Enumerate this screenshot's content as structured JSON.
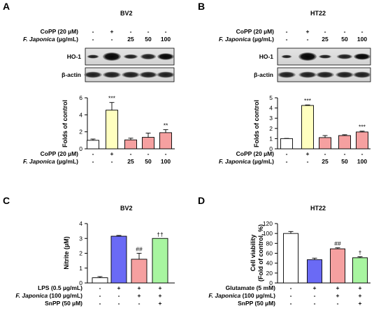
{
  "panels": [
    {
      "letter": "A",
      "cell": "BV2",
      "blot": {
        "header_rows": [
          {
            "label": "CoPP (20 µM)",
            "marks": [
              "-",
              "+",
              "-",
              "-",
              "-"
            ]
          },
          {
            "label": "F. Japonica (µg/mL)",
            "marks": [
              "-",
              "-",
              "25",
              "50",
              "100"
            ]
          }
        ],
        "bands": [
          "HO-1",
          "β-actin"
        ]
      }
    },
    {
      "letter": "B",
      "cell": "HT22",
      "blot": {
        "header_rows": [
          {
            "label": "CoPP (20 µM)",
            "marks": [
              "-",
              "+",
              "-",
              "-",
              "-"
            ]
          },
          {
            "label": "F. Japonica (µg/mL)",
            "marks": [
              "-",
              "-",
              "25",
              "50",
              "100"
            ]
          }
        ],
        "bands": [
          "HO-1",
          "β-actin"
        ]
      }
    },
    {
      "letter": "C",
      "cell": "BV2"
    },
    {
      "letter": "D",
      "cell": "HT22"
    }
  ],
  "chart_data": [
    {
      "type": "bar",
      "panel": "A",
      "ylabel": "Folds of control",
      "ylim": [
        0,
        6
      ],
      "yticks": [
        0,
        2,
        4,
        6
      ],
      "values": [
        1.0,
        4.55,
        1.05,
        1.35,
        1.9
      ],
      "errors": [
        0.15,
        0.9,
        0.2,
        0.5,
        0.35
      ],
      "colors": [
        "#ffffff",
        "#ffffbf",
        "#f5a0a0",
        "#f5a0a0",
        "#f5a0a0"
      ],
      "annotations": [
        "",
        "***",
        "",
        "",
        "**"
      ],
      "rows": [
        {
          "label": "CoPP (20 µM)",
          "marks": [
            "-",
            "+",
            "-",
            "-",
            "-"
          ]
        },
        {
          "label": "F. Japonica (µg/mL)",
          "marks": [
            "-",
            "-",
            "25",
            "50",
            "100"
          ]
        }
      ]
    },
    {
      "type": "bar",
      "panel": "B",
      "ylabel": "Folds of control",
      "ylim": [
        0,
        5
      ],
      "yticks": [
        0,
        1,
        2,
        3,
        4,
        5
      ],
      "values": [
        1.0,
        4.25,
        1.1,
        1.3,
        1.65
      ],
      "errors": [
        0.02,
        0.05,
        0.2,
        0.08,
        0.08
      ],
      "colors": [
        "#ffffff",
        "#ffffbf",
        "#f5a0a0",
        "#f5a0a0",
        "#f5a0a0"
      ],
      "annotations": [
        "",
        "***",
        "",
        "",
        "***"
      ],
      "rows": [
        {
          "label": "CoPP (20 µM)",
          "marks": [
            "-",
            "+",
            "-",
            "-",
            "-"
          ]
        },
        {
          "label": "F. Japonica (µg/mL)",
          "marks": [
            "-",
            "-",
            "25",
            "50",
            "100"
          ]
        }
      ]
    },
    {
      "type": "bar",
      "panel": "C",
      "ylabel": "Nitrite (µM)",
      "ylim": [
        0,
        4
      ],
      "yticks": [
        0,
        1,
        2,
        3,
        4
      ],
      "values": [
        0.35,
        3.15,
        1.6,
        3.0
      ],
      "errors": [
        0.08,
        0.05,
        0.4,
        0.0
      ],
      "colors": [
        "#ffffff",
        "#6a6af5",
        "#f5a0a0",
        "#a8f5a0"
      ],
      "annotations": [
        "",
        "",
        "##",
        "††"
      ],
      "rows": [
        {
          "label": "LPS (0.5 µg/mL)",
          "marks": [
            "-",
            "+",
            "+",
            "+"
          ]
        },
        {
          "label": "F. Japonica (100 µg/mL)",
          "marks": [
            "-",
            "-",
            "+",
            "+"
          ]
        },
        {
          "label": "SnPP (50 µM)",
          "marks": [
            "-",
            "-",
            "-",
            "+"
          ]
        }
      ]
    },
    {
      "type": "bar",
      "panel": "D",
      "ylabel": "Cell viability (Fold of control, %)",
      "ylabel_lines": [
        "Cell viability",
        "(Fold of control, %)"
      ],
      "ylim": [
        0,
        120
      ],
      "yticks": [
        0,
        20,
        40,
        60,
        80,
        100,
        120
      ],
      "values": [
        100,
        47,
        69,
        51
      ],
      "errors": [
        4,
        3,
        2,
        2
      ],
      "colors": [
        "#ffffff",
        "#6a6af5",
        "#f5a0a0",
        "#a8f5a0"
      ],
      "annotations": [
        "",
        "",
        "##",
        "†"
      ],
      "rows": [
        {
          "label": "Glutamate (5 mM)",
          "marks": [
            "-",
            "+",
            "+",
            "+"
          ]
        },
        {
          "label": "F. Japonica (100 µg/mL)",
          "marks": [
            "-",
            "-",
            "+",
            "+"
          ]
        },
        {
          "label": "SnPP (50 µM)",
          "marks": [
            "-",
            "-",
            "-",
            "+"
          ]
        }
      ]
    }
  ]
}
